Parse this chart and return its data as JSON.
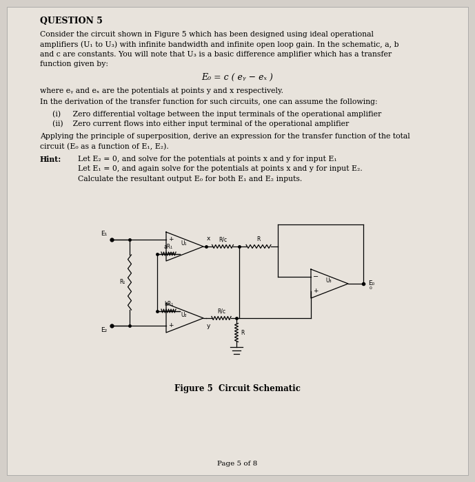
{
  "bg_color": "#d4cfc9",
  "page_bg": "#e8e3dc",
  "title": "QUESTION 5",
  "para1_line1": "Consider the circuit shown in Figure 5 which has been designed using ideal operational",
  "para1_line2": "amplifiers (U₁ to U₃) with infinite bandwidth and infinite open loop gain. In the schematic, a, b",
  "para1_line3": "and c are constants. You will note that U₃ is a basic difference amplifier which has a transfer",
  "para1_line4": "function given by:",
  "equation": "E₀ = c ( eᵧ − eₓ )",
  "para2": "where eᵧ and eₓ are the potentials at points y and x respectively.",
  "para3": "In the derivation of the transfer function for such circuits, one can assume the following:",
  "item_i": "(i)     Zero differential voltage between the input terminals of the operational amplifier",
  "item_ii": "(ii)    Zero current flows into either input terminal of the operational amplifier",
  "para4_line1": "Applying the principle of superposition, derive an expression for the transfer function of the total",
  "para4_line2": "circuit (E₀ as a function of E₁, E₂).",
  "hint_label": "Hint:",
  "hint1": "Let E₂ = 0, and solve for the potentials at points x and y for input E₁",
  "hint2": "Let E₁ = 0, and again solve for the potentials at points x and y for input E₂.",
  "hint3": "Calculate the resultant output E₀ for both E₁ and E₂ inputs.",
  "fig_caption": "Figure 5  Circuit Schematic",
  "page_footer": "Page 5 of 8",
  "font_title": 9,
  "font_body": 7.8,
  "font_eq": 9,
  "font_caption": 8.5,
  "font_footer": 7.5
}
